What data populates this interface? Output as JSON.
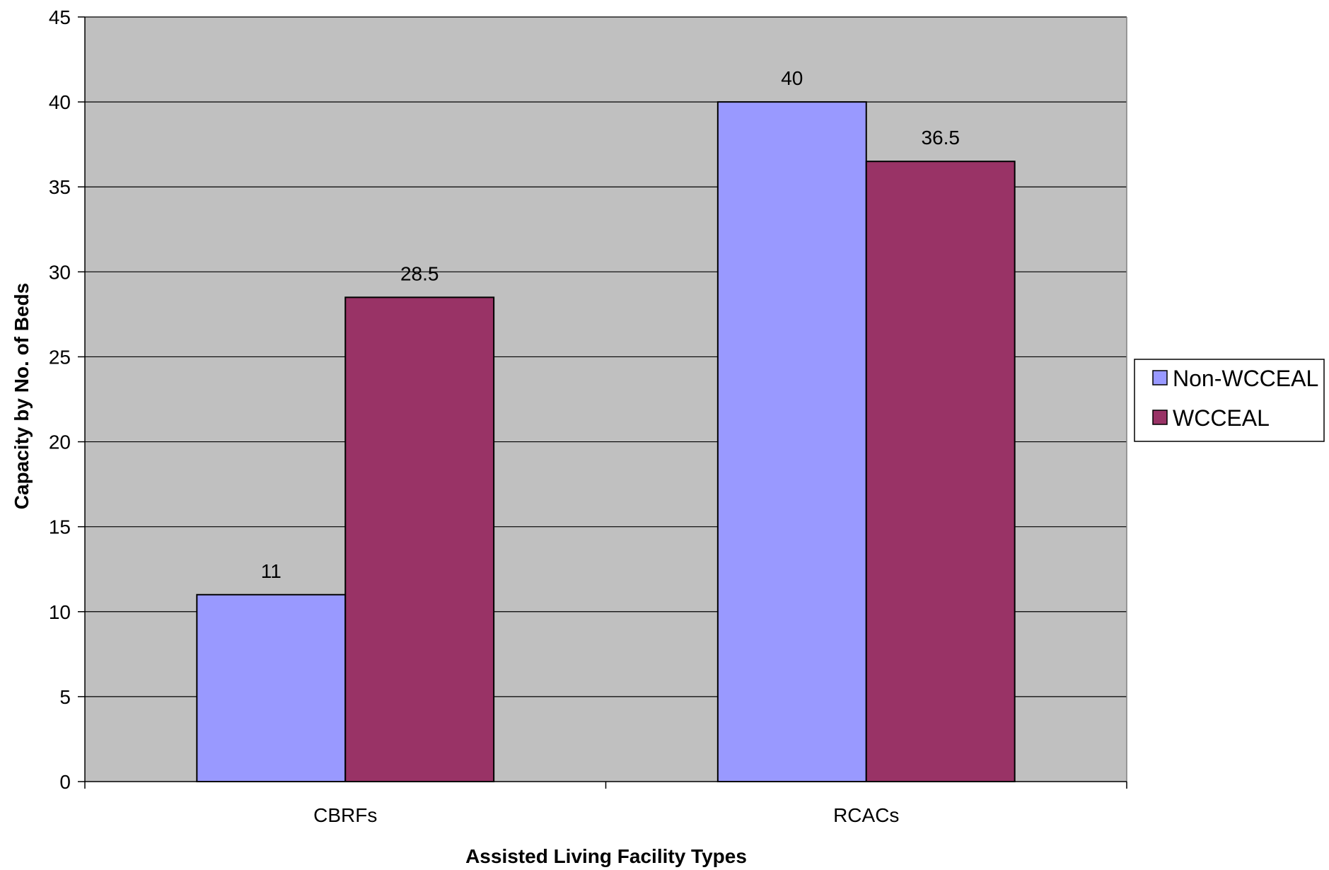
{
  "chart_data": {
    "type": "bar",
    "title": "",
    "xlabel": "Assisted Living Facility Types",
    "ylabel": "Capacity by No. of Beds",
    "categories": [
      "CBRFs",
      "RCACs"
    ],
    "series": [
      {
        "name": "Non-WCCEAL",
        "values": [
          11,
          40
        ],
        "color": "#9999FF"
      },
      {
        "name": "WCCEAL",
        "values": [
          28.5,
          36.5
        ],
        "color": "#993366"
      }
    ],
    "data_labels": [
      [
        "11",
        "40"
      ],
      [
        "28.5",
        "36.5"
      ]
    ],
    "ylim": [
      0,
      45
    ],
    "yticks": [
      0,
      5,
      10,
      15,
      20,
      25,
      30,
      35,
      40,
      45
    ],
    "ytick_labels": [
      "0",
      "5",
      "10",
      "15",
      "20",
      "25",
      "30",
      "35",
      "40",
      "45"
    ],
    "grid": true,
    "plot_background": "#C0C0C0",
    "legend_position": "right"
  }
}
